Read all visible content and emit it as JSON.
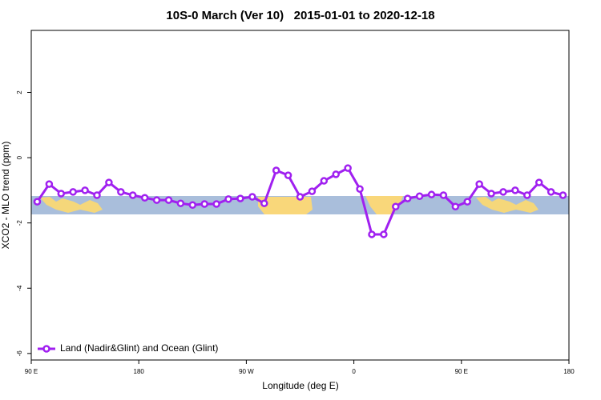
{
  "chart_data": {
    "type": "line",
    "title": "10S-0 March (Ver 10)   2015-01-01 to 2020-12-18",
    "x_label": "Longitude (deg E)",
    "y_label": "XCO2 - MLO trend (ppm)",
    "x": [
      95,
      105,
      115,
      125,
      135,
      145,
      155,
      165,
      175,
      185,
      195,
      205,
      215,
      225,
      235,
      245,
      255,
      265,
      275,
      285,
      295,
      305,
      315,
      325,
      335,
      345,
      355,
      365,
      375,
      385,
      395,
      405,
      415,
      425,
      435,
      445,
      455,
      465,
      475,
      485,
      495,
      505,
      515,
      525,
      535
    ],
    "series": [
      {
        "name": "Land (Nadir&Glint) and Ocean (Glint)",
        "color": "#a020f0",
        "values": [
          -1.35,
          -0.81,
          -1.1,
          -1.05,
          -1.0,
          -1.15,
          -0.76,
          -1.05,
          -1.15,
          -1.23,
          -1.3,
          -1.3,
          -1.4,
          -1.45,
          -1.42,
          -1.42,
          -1.27,
          -1.25,
          -1.2,
          -1.4,
          -0.39,
          -0.54,
          -1.2,
          -1.03,
          -0.71,
          -0.51,
          -0.32,
          -0.96,
          -2.35,
          -2.35,
          -1.5,
          -1.25,
          -1.18,
          -1.13,
          -1.15,
          -1.5,
          -1.35,
          -0.81,
          -1.1,
          -1.05,
          -1.0,
          -1.15,
          -0.76,
          -1.05,
          -1.15
        ]
      }
    ],
    "xlim": [
      90,
      540
    ],
    "xticks": [
      {
        "value": 90,
        "label": "90 E"
      },
      180,
      {
        "value": 270,
        "label": "90 W"
      },
      {
        "value": 360,
        "label": "0"
      },
      {
        "value": 450,
        "label": "90 E"
      },
      {
        "value": 540,
        "label": "180"
      }
    ],
    "ylim": [
      -6.2,
      3.9
    ],
    "yticks": [
      -6,
      -4,
      -2,
      0,
      2
    ],
    "legend": "bottom-left"
  }
}
